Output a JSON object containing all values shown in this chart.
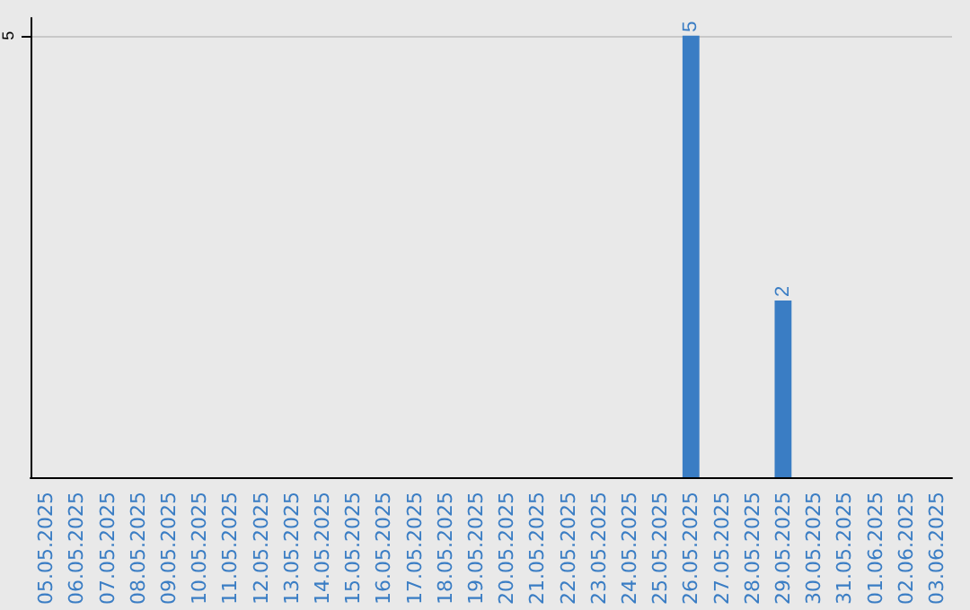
{
  "chart_data": {
    "type": "bar",
    "categories": [
      "05.05.2025",
      "06.05.2025",
      "07.05.2025",
      "08.05.2025",
      "09.05.2025",
      "10.05.2025",
      "11.05.2025",
      "12.05.2025",
      "13.05.2025",
      "14.05.2025",
      "15.05.2025",
      "16.05.2025",
      "17.05.2025",
      "18.05.2025",
      "19.05.2025",
      "20.05.2025",
      "21.05.2025",
      "22.05.2025",
      "23.05.2025",
      "24.05.2025",
      "25.05.2025",
      "26.05.2025",
      "27.05.2025",
      "28.05.2025",
      "29.05.2025",
      "30.05.2025",
      "31.05.2025",
      "01.06.2025",
      "02.06.2025",
      "03.06.2025"
    ],
    "values": [
      null,
      null,
      null,
      null,
      null,
      null,
      null,
      null,
      null,
      null,
      null,
      null,
      null,
      null,
      null,
      null,
      null,
      null,
      null,
      null,
      null,
      5,
      null,
      null,
      2,
      null,
      null,
      null,
      null,
      null
    ],
    "color": "#3a7dc4",
    "ylim": [
      0,
      5.2
    ],
    "yticks": [
      5
    ],
    "grid": "y",
    "data_labels": true
  }
}
